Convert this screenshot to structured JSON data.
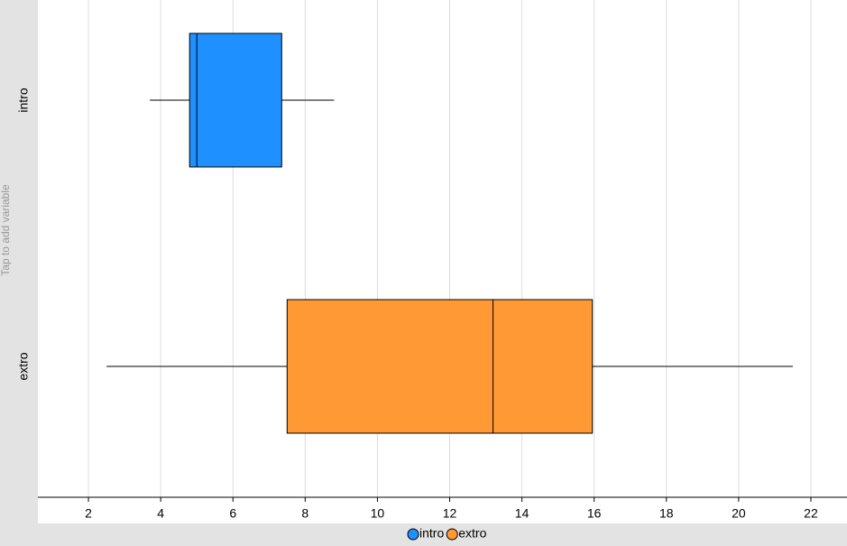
{
  "chart_data": {
    "type": "boxplot",
    "ylabel": "Tap to add variable",
    "categories": [
      "intro",
      "extro"
    ],
    "series": [
      {
        "name": "intro",
        "color": "#1e90ff",
        "whisker_low": 3.7,
        "q1": 4.8,
        "median": 5.0,
        "q3": 7.35,
        "whisker_high": 8.8
      },
      {
        "name": "extro",
        "color": "#ff9933",
        "whisker_low": 2.5,
        "q1": 7.5,
        "median": 13.2,
        "q3": 15.95,
        "whisker_high": 21.5
      }
    ],
    "xlim": [
      0.6,
      23.0
    ],
    "xticks": [
      2,
      4,
      6,
      8,
      10,
      12,
      14,
      16,
      18,
      20,
      22
    ],
    "grid": true
  }
}
